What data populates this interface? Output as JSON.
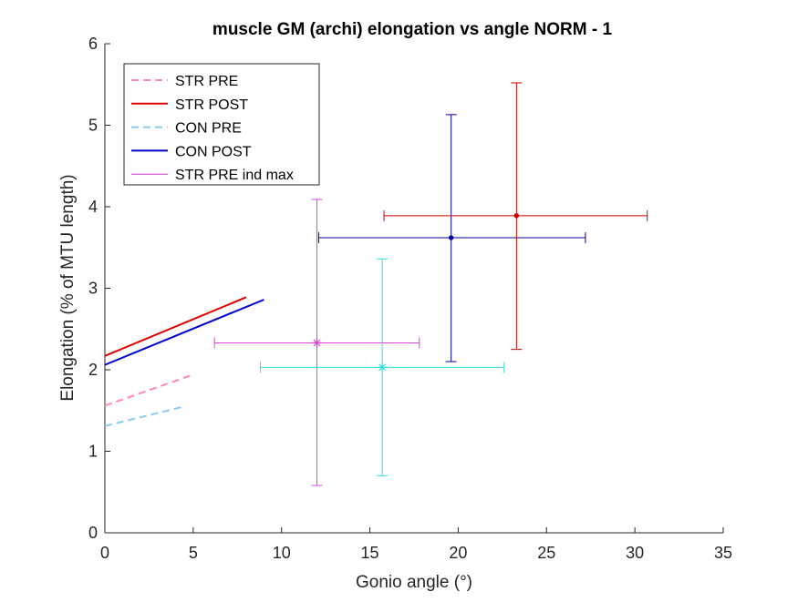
{
  "chart_data": {
    "type": "line",
    "title": "muscle GM (archi) elongation vs angle NORM - 1",
    "xlabel": "Gonio angle (°)",
    "ylabel": "Elongation (% of MTU length)",
    "xlim": [
      0,
      35
    ],
    "ylim": [
      0,
      6
    ],
    "xticks": [
      "0",
      "5",
      "10",
      "15",
      "20",
      "25",
      "30",
      "35"
    ],
    "yticks": [
      "0",
      "1",
      "2",
      "3",
      "4",
      "5",
      "6"
    ],
    "grid": false,
    "legend_position": "top-left",
    "series": [
      {
        "name": "STR PRE",
        "color": "#ff88bb",
        "dashed": true,
        "x": [
          0,
          5
        ],
        "y": [
          1.56,
          1.94
        ]
      },
      {
        "name": "STR POST",
        "color": "#dd0000",
        "dashed": false,
        "x": [
          0,
          8
        ],
        "y": [
          2.17,
          2.89
        ]
      },
      {
        "name": "CON PRE",
        "color": "#88ccee",
        "dashed": true,
        "x": [
          0,
          4.5
        ],
        "y": [
          1.31,
          1.55
        ]
      },
      {
        "name": "CON POST",
        "color": "#0000cc",
        "dashed": false,
        "x": [
          0,
          9
        ],
        "y": [
          2.06,
          2.86
        ]
      },
      {
        "name": "STR PRE ind max",
        "color": "#cc33cc",
        "dashed": false,
        "x": [],
        "y": []
      }
    ],
    "errorbars": [
      {
        "series": "STR PRE ind max",
        "color": "#dd44dd",
        "marker": "star",
        "x": 12.0,
        "y": 2.33,
        "xerr": [
          6.2,
          17.8
        ],
        "yerr": [
          0.58,
          4.09
        ]
      },
      {
        "series": "CON PRE",
        "color": "#33dddd",
        "marker": "star",
        "x": 15.7,
        "y": 2.03,
        "xerr": [
          8.8,
          22.6
        ],
        "yerr": [
          0.7,
          3.36
        ]
      },
      {
        "series": "CON POST",
        "color": "#000099",
        "marker": "dot",
        "x": 19.6,
        "y": 3.62,
        "xerr": [
          12.1,
          27.2
        ],
        "yerr": [
          2.1,
          5.13
        ]
      },
      {
        "series": "STR POST",
        "color": "#cc0000",
        "marker": "dot",
        "x": 23.3,
        "y": 3.89,
        "xerr": [
          15.8,
          30.7
        ],
        "yerr": [
          2.25,
          5.52
        ]
      }
    ]
  }
}
